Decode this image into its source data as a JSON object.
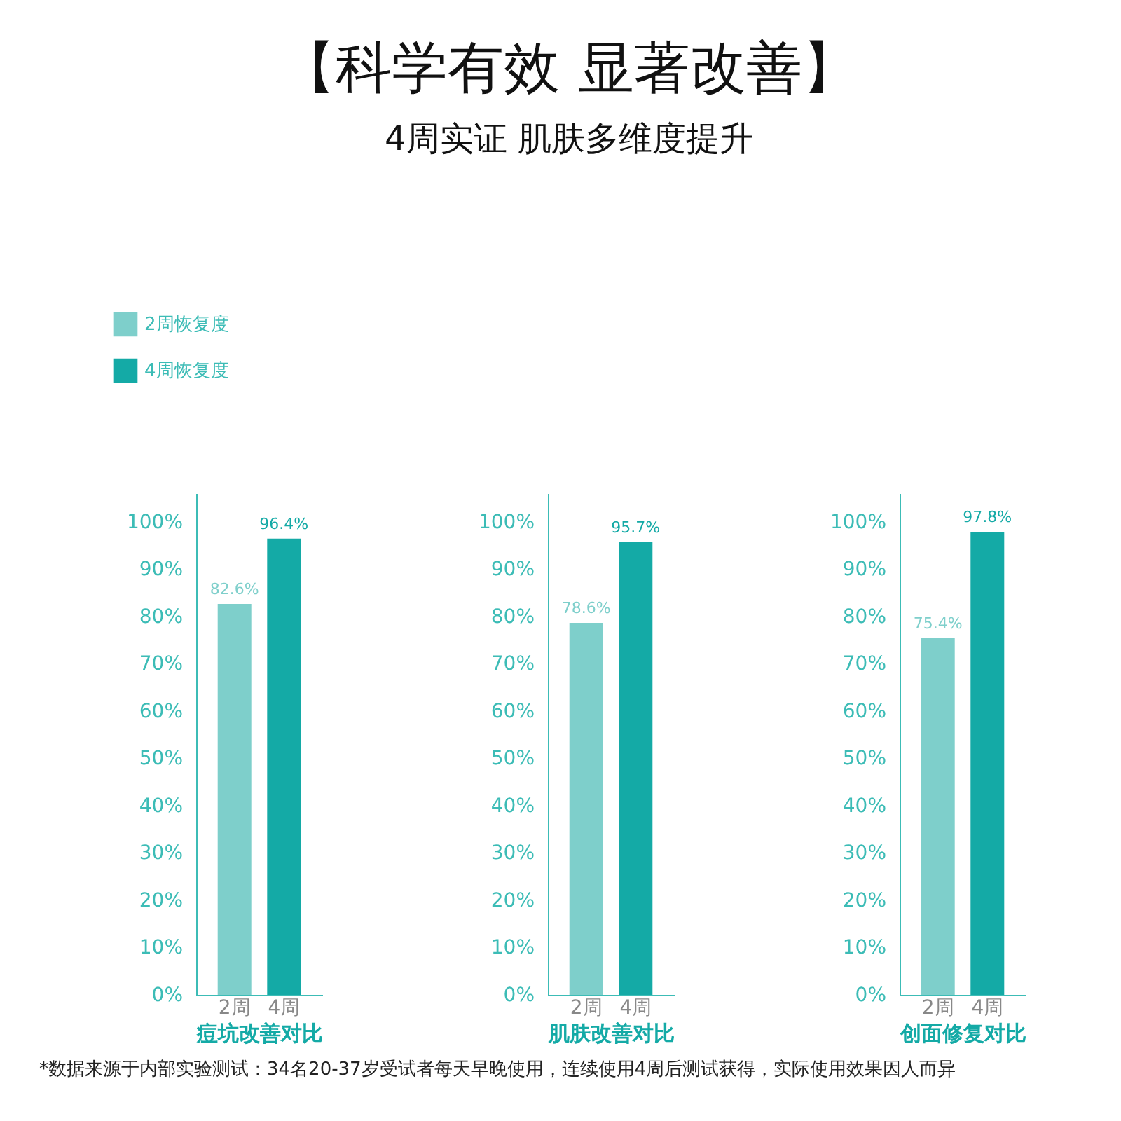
{
  "chart_data": [
    {
      "type": "bar",
      "xlabel": "痘坑改善对比",
      "categories": [
        "2周",
        "4周"
      ],
      "legend": "top left",
      "series": [
        {
          "name": "2周恢复度",
          "color": "#7ecfcb",
          "values": [
            82.6,
            null
          ],
          "value_labels": [
            "82.6%",
            null
          ]
        },
        {
          "name": "4周恢复度",
          "color": "#14aaa6",
          "values": [
            null,
            96.4
          ],
          "value_labels": [
            null,
            "96.4%"
          ]
        }
      ],
      "ylim": [
        0,
        106
      ],
      "yticks": [
        {
          "value": 0,
          "label": "0%"
        },
        {
          "value": 10,
          "label": "10%"
        },
        {
          "value": 20,
          "label": "20%"
        },
        {
          "value": 30,
          "label": "30%"
        },
        {
          "value": 40,
          "label": "40%"
        },
        {
          "value": 50,
          "label": "50%"
        },
        {
          "value": 60,
          "label": "60%"
        },
        {
          "value": 70,
          "label": "70%"
        },
        {
          "value": 80,
          "label": "80%"
        },
        {
          "value": 90,
          "label": "90%"
        },
        {
          "value": 100,
          "label": "100%"
        }
      ]
    },
    {
      "type": "bar",
      "title": "【科学有效 显著改善】",
      "subtitle": "4周实证 肌肤多维度提升",
      "xlabel": "肌肤改善对比",
      "categories": [
        "2周",
        "4周"
      ],
      "series": [
        {
          "color": "#7ecfcb",
          "values": [
            78.6,
            null
          ],
          "value_labels": [
            "78.6%",
            null
          ]
        },
        {
          "color": "#14aaa6",
          "values": [
            null,
            95.7
          ],
          "value_labels": [
            null,
            "95.7%"
          ]
        }
      ],
      "ylim": [
        0,
        106
      ],
      "yticks": [
        {
          "value": 0,
          "label": "0%"
        },
        {
          "value": 10,
          "label": "10%"
        },
        {
          "value": 20,
          "label": "20%"
        },
        {
          "value": 30,
          "label": "30%"
        },
        {
          "value": 40,
          "label": "40%"
        },
        {
          "value": 50,
          "label": "50%"
        },
        {
          "value": 60,
          "label": "60%"
        },
        {
          "value": 70,
          "label": "70%"
        },
        {
          "value": 80,
          "label": "80%"
        },
        {
          "value": 90,
          "label": "90%"
        },
        {
          "value": 100,
          "label": "100%"
        }
      ]
    },
    {
      "type": "bar",
      "xlabel": "创面修复对比",
      "categories": [
        "2周",
        "4周"
      ],
      "annotations": [
        "*数据来源于内部实验测试：34名20-37岁受试者每天早晚使用，连续使用4周后测试获得，实际使用效果因人而异"
      ],
      "series": [
        {
          "color": "#7ecfcb",
          "values": [
            75.4,
            null
          ],
          "value_labels": [
            "75.4%",
            null
          ]
        },
        {
          "color": "#14aaa6",
          "values": [
            null,
            97.8
          ],
          "value_labels": [
            null,
            "97.8%"
          ]
        }
      ],
      "ylim": [
        0,
        106
      ],
      "yticks": [
        {
          "value": 0,
          "label": "0%"
        },
        {
          "value": 10,
          "label": "10%"
        },
        {
          "value": 20,
          "label": "20%"
        },
        {
          "value": 30,
          "label": "30%"
        },
        {
          "value": 40,
          "label": "40%"
        },
        {
          "value": 50,
          "label": "50%"
        },
        {
          "value": 60,
          "label": "60%"
        },
        {
          "value": 70,
          "label": "70%"
        },
        {
          "value": 80,
          "label": "80%"
        },
        {
          "value": 90,
          "label": "90%"
        },
        {
          "value": 100,
          "label": "100%"
        }
      ]
    }
  ]
}
